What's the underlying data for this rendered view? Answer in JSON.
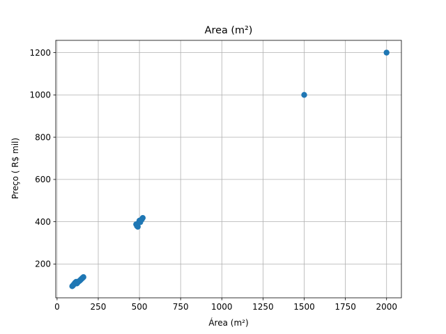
{
  "chart_data": {
    "type": "scatter",
    "title": "Area (m²)",
    "xlabel": "Área (m²)",
    "ylabel": "Preço ( R$ mil)",
    "xlim": [
      -8,
      2090
    ],
    "ylim": [
      40,
      1258
    ],
    "xticks": [
      0,
      250,
      500,
      750,
      1000,
      1250,
      1500,
      1750,
      2000
    ],
    "yticks": [
      200,
      400,
      600,
      800,
      1000,
      1200
    ],
    "xtick_labels": [
      "0",
      "250",
      "500",
      "750",
      "1000",
      "1250",
      "1500",
      "1750",
      "2000"
    ],
    "ytick_labels": [
      "200",
      "400",
      "600",
      "800",
      "1000",
      "1200"
    ],
    "grid": true,
    "marker_color": "#1f77b4",
    "series": [
      {
        "x": [
          92,
          96,
          100,
          104,
          108,
          112,
          116,
          120,
          124,
          128,
          132,
          136,
          140,
          144,
          148,
          152,
          156,
          160,
          480,
          485,
          490,
          495,
          500,
          505,
          510,
          515,
          520,
          1500,
          2000
        ],
        "y": [
          95,
          98,
          102,
          105,
          110,
          113,
          116,
          108,
          112,
          115,
          118,
          120,
          123,
          126,
          129,
          132,
          135,
          138,
          388,
          380,
          376,
          395,
          405,
          398,
          408,
          412,
          418,
          1000,
          1200
        ]
      }
    ]
  }
}
